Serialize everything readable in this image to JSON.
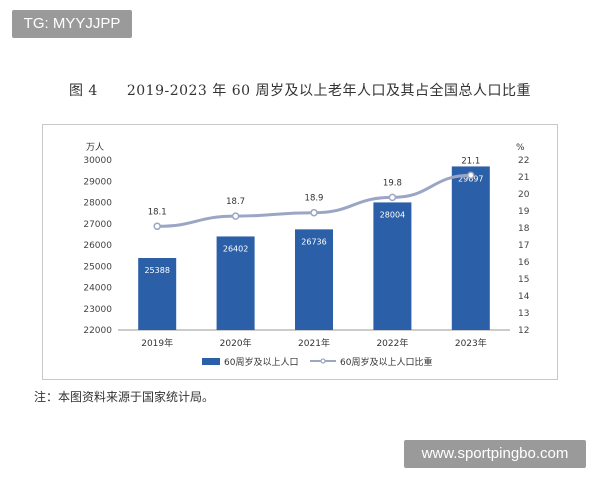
{
  "watermarks": {
    "top": "TG: MYYJJPP",
    "bottom": "www.sportpingbo.com"
  },
  "title": "图 4　　2019-2023 年 60 周岁及以上老年人口及其占全国总人口比重",
  "note": "注：本图资料来源于国家统计局。",
  "chart_data": {
    "type": "bar",
    "title": "图 4　　2019-2023 年 60 周岁及以上老年人口及其占全国总人口比重",
    "categories": [
      "2019年",
      "2020年",
      "2021年",
      "2022年",
      "2023年"
    ],
    "series": [
      {
        "name": "60周岁及以上人口",
        "type": "bar",
        "axis": "left",
        "values": [
          25388,
          26402,
          26736,
          28004,
          29697
        ],
        "color": "#2b5fa8"
      },
      {
        "name": "60周岁及以上人口比重",
        "type": "line",
        "axis": "right",
        "values": [
          18.1,
          18.7,
          18.9,
          19.8,
          21.1
        ],
        "color": "#9aa6c4"
      }
    ],
    "ylabel": "万人",
    "y2label": "%",
    "ylim": [
      22000,
      30000
    ],
    "y2lim": [
      12,
      22
    ],
    "yticks": [
      "22000",
      "23000",
      "24000",
      "25000",
      "26000",
      "27000",
      "28000",
      "29000",
      "30000"
    ],
    "y2ticks": [
      "12",
      "13",
      "14",
      "15",
      "16",
      "17",
      "18",
      "19",
      "20",
      "21",
      "22"
    ],
    "grid": false,
    "legend": "bottom"
  }
}
